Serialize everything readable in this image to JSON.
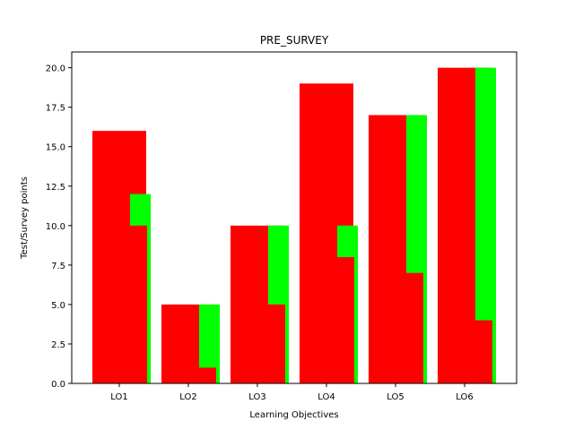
{
  "chart_data": {
    "type": "bar",
    "title": "PRE_SURVEY",
    "xlabel": "Learning Objectives",
    "ylabel": "Test/Survey points",
    "categories": [
      "LO1",
      "LO2",
      "LO3",
      "LO4",
      "LO5",
      "LO6"
    ],
    "ylim": [
      0,
      21
    ],
    "yticks": [
      "0.0",
      "2.5",
      "5.0",
      "7.5",
      "10.0",
      "12.5",
      "15.0",
      "17.5",
      "20.0"
    ],
    "grid": false,
    "colors": {
      "red": "#ff0000",
      "green": "#00ff00"
    },
    "series": [
      {
        "values": [
          16,
          5,
          10,
          19,
          17,
          20
        ],
        "color": "#ff0000"
      },
      {
        "values": [
          12,
          5,
          10,
          10,
          17,
          20
        ],
        "color": "#00ff00"
      },
      {
        "values": [
          10,
          1,
          5,
          8,
          7,
          4
        ],
        "color": "#ff0000"
      }
    ]
  }
}
